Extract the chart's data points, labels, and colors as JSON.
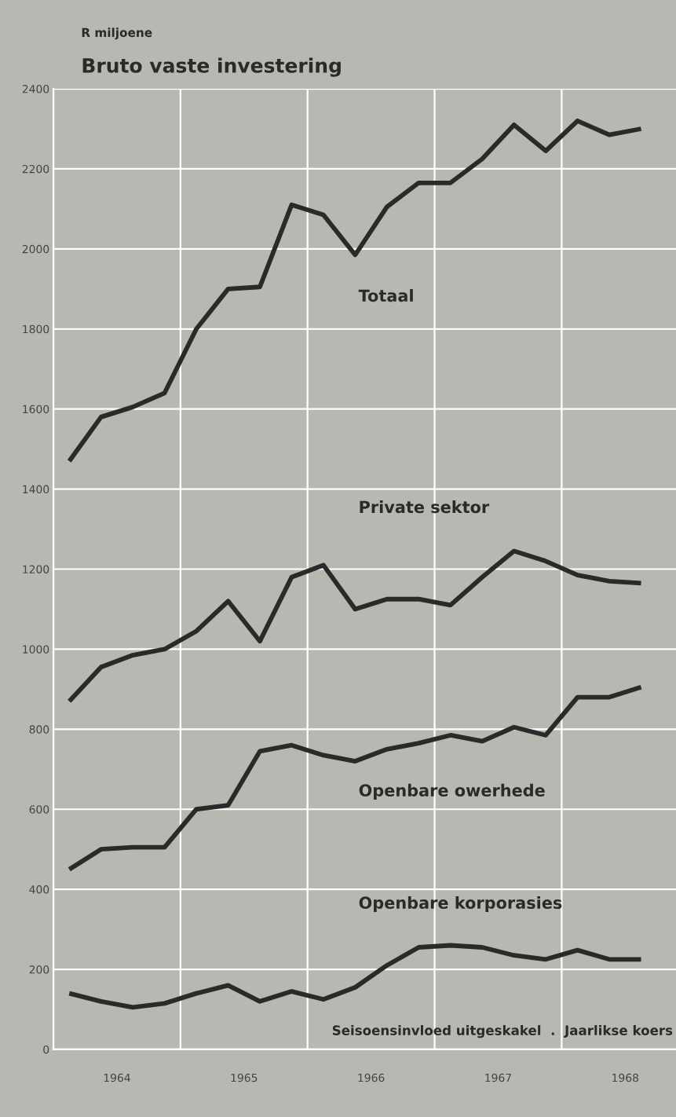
{
  "chart_data": {
    "type": "line",
    "title": "Bruto vaste investering",
    "ylabel": "R miljoene",
    "annotations": [
      "Seisoensinvloed uitgeskakel  .  Jaarlikse koers"
    ],
    "x": [
      1964.125,
      1964.375,
      1964.625,
      1964.875,
      1965.125,
      1965.375,
      1965.625,
      1965.875,
      1966.125,
      1966.375,
      1966.625,
      1966.875,
      1967.125,
      1967.375,
      1967.625,
      1967.875,
      1968.125,
      1968.375,
      1968.625
    ],
    "series": [
      {
        "name": "Totaal",
        "color": "#2a2a2a",
        "values": [
          1470,
          1580,
          1605,
          1640,
          1800,
          1900,
          1905,
          2110,
          2085,
          1985,
          2105,
          2165,
          2165,
          2225,
          2310,
          2245,
          2320,
          2285,
          2300
        ]
      },
      {
        "name": "Private sektor",
        "color": "#2a2a2a",
        "values": [
          870,
          955,
          985,
          1000,
          1045,
          1120,
          1020,
          1180,
          1210,
          1100,
          1125,
          1125,
          1110,
          1180,
          1245,
          1220,
          1185,
          1170,
          1165
        ]
      },
      {
        "name": "Openbare owerhede",
        "color": "#2a2a2a",
        "values": [
          450,
          500,
          505,
          505,
          600,
          610,
          745,
          760,
          735,
          720,
          750,
          765,
          785,
          770,
          805,
          785,
          880,
          880,
          905
        ]
      },
      {
        "name": "Openbare korporasies",
        "color": "#2a2a2a",
        "values": [
          140,
          120,
          105,
          115,
          140,
          160,
          120,
          145,
          125,
          155,
          210,
          255,
          260,
          255,
          235,
          225,
          248,
          225,
          225
        ]
      }
    ],
    "xlim": [
      1964,
      1968.9
    ],
    "xticks": [
      {
        "value": 1964,
        "label": null
      },
      {
        "value": 1965,
        "label": null
      },
      {
        "value": 1966,
        "label": null
      },
      {
        "value": 1967,
        "label": null
      },
      {
        "value": 1968,
        "label": null
      },
      {
        "value": 1964.5,
        "label": "1964"
      },
      {
        "value": 1965.5,
        "label": "1965"
      },
      {
        "value": 1966.5,
        "label": "1966"
      },
      {
        "value": 1967.5,
        "label": "1967"
      },
      {
        "value": 1968.5,
        "label": "1968"
      }
    ],
    "ylim": [
      0,
      2400
    ],
    "yticks": [
      0,
      200,
      400,
      600,
      800,
      1000,
      1200,
      1400,
      1600,
      1800,
      2000,
      2200,
      2400
    ],
    "grid": true,
    "line_style": "solid"
  }
}
